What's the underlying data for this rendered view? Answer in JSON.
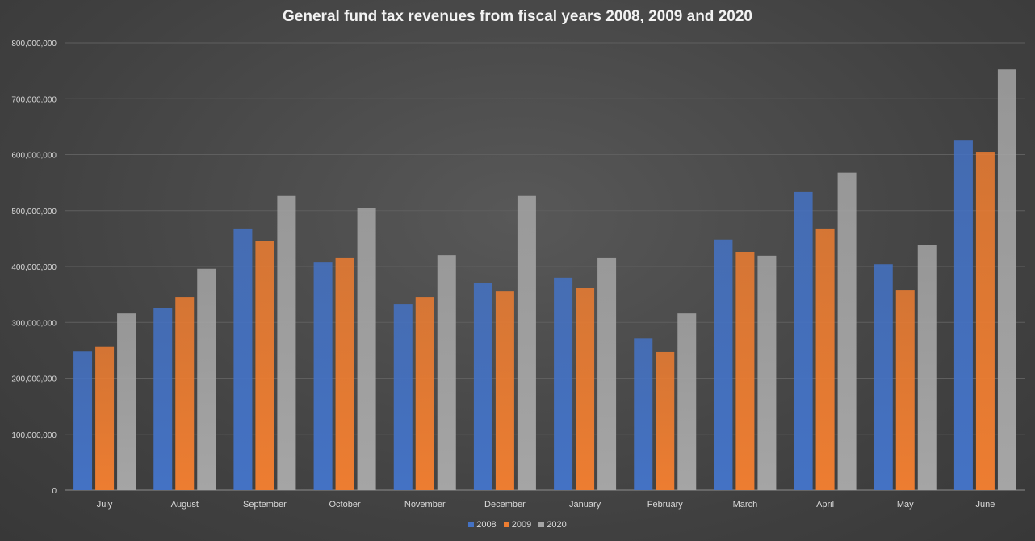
{
  "chart_data": {
    "type": "bar",
    "title": "General fund tax revenues from fiscal years 2008, 2009 and 2020",
    "xlabel": "",
    "ylabel": "",
    "ylim": [
      0,
      800000000
    ],
    "yticks": [
      "0",
      "100,000,000",
      "200,000,000",
      "300,000,000",
      "400,000,000",
      "500,000,000",
      "600,000,000",
      "700,000,000",
      "800,000,000"
    ],
    "grid": true,
    "legend_position": "bottom",
    "categories": [
      "July",
      "August",
      "September",
      "October",
      "November",
      "December",
      "January",
      "February",
      "March",
      "April",
      "May",
      "June"
    ],
    "series": [
      {
        "name": "2008",
        "color": "#4472c4",
        "values": [
          248000000,
          326000000,
          468000000,
          407000000,
          332000000,
          371000000,
          380000000,
          271000000,
          448000000,
          533000000,
          404000000,
          625000000
        ]
      },
      {
        "name": "2009",
        "color": "#ed7d31",
        "values": [
          256000000,
          345000000,
          445000000,
          416000000,
          345000000,
          355000000,
          361000000,
          247000000,
          426000000,
          468000000,
          358000000,
          605000000
        ]
      },
      {
        "name": "2020",
        "color": "#a5a5a5",
        "values": [
          316000000,
          396000000,
          526000000,
          504000000,
          420000000,
          526000000,
          416000000,
          316000000,
          419000000,
          568000000,
          438000000,
          752000000
        ]
      }
    ]
  }
}
